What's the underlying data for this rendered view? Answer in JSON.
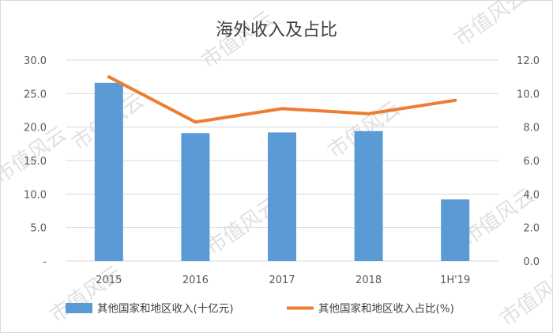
{
  "watermark_text": "市值风云",
  "chart_data": {
    "type": "bar+line",
    "title": "海外收入及占比",
    "categories": [
      "2015",
      "2016",
      "2017",
      "2018",
      "1H'19"
    ],
    "series": [
      {
        "name": "其他国家和地区收入(十亿元)",
        "kind": "bar",
        "axis": "left",
        "color": "#5b9bd5",
        "values": [
          26.6,
          19.1,
          19.2,
          19.4,
          9.2
        ]
      },
      {
        "name": "其他国家和地区收入占比(%)",
        "kind": "line",
        "axis": "right",
        "color": "#ed7d31",
        "values": [
          11.0,
          8.3,
          9.1,
          8.8,
          9.6
        ]
      }
    ],
    "left_axis": {
      "ylim": [
        0,
        30
      ],
      "ticks": [
        "-",
        "5.0",
        "10.0",
        "15.0",
        "20.0",
        "25.0",
        "30.0"
      ]
    },
    "right_axis": {
      "ylim": [
        0,
        12
      ],
      "ticks": [
        "0.0",
        "2.0",
        "4.0",
        "6.0",
        "8.0",
        "10.0",
        "12.0"
      ]
    },
    "grid": true,
    "legend_position": "bottom"
  }
}
